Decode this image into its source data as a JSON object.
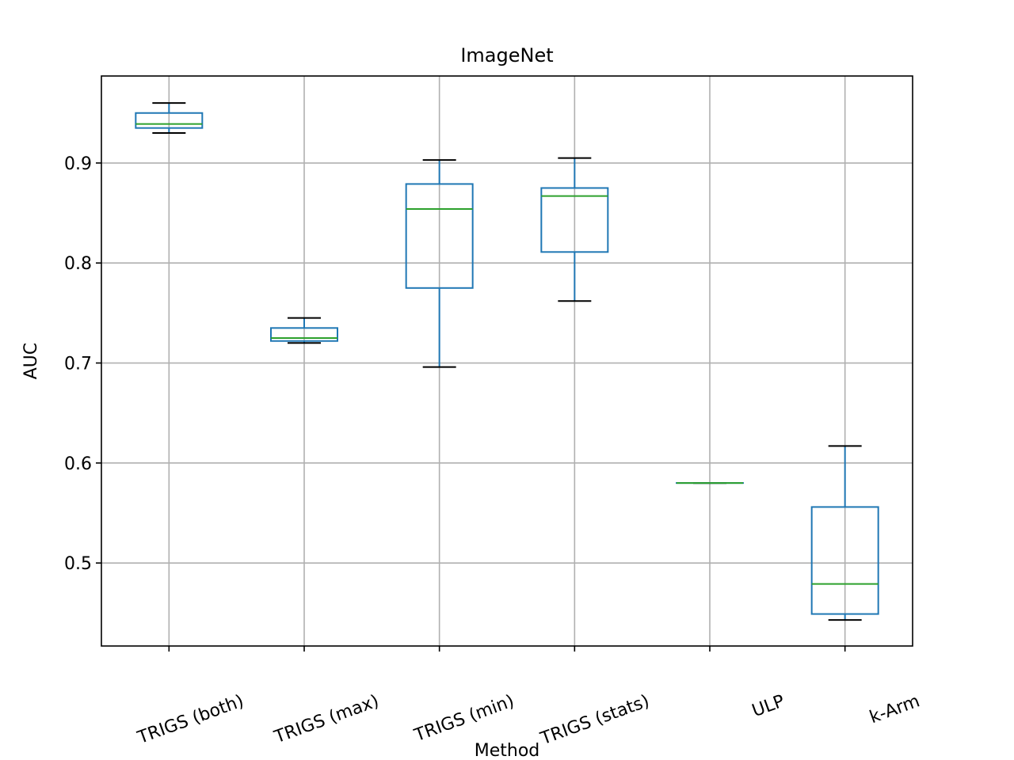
{
  "chart_data": {
    "type": "box",
    "title": "ImageNet",
    "xlabel": "Method",
    "ylabel": "AUC",
    "ylim": [
      0.417,
      0.987
    ],
    "yticks": [
      0.5,
      0.6,
      0.7,
      0.8,
      0.9
    ],
    "ytick_labels": [
      "0.5",
      "0.6",
      "0.7",
      "0.8",
      "0.9"
    ],
    "grid": true,
    "categories": [
      "TRIGS (both)",
      "TRIGS (max)",
      "TRIGS (min)",
      "TRIGS (stats)",
      "ULP",
      "k-Arm"
    ],
    "boxes": [
      {
        "min": 0.93,
        "q1": 0.935,
        "median": 0.939,
        "q3": 0.95,
        "max": 0.96
      },
      {
        "min": 0.72,
        "q1": 0.722,
        "median": 0.725,
        "q3": 0.735,
        "max": 0.745
      },
      {
        "min": 0.696,
        "q1": 0.775,
        "median": 0.854,
        "q3": 0.879,
        "max": 0.903
      },
      {
        "min": 0.762,
        "q1": 0.811,
        "median": 0.867,
        "q3": 0.875,
        "max": 0.905
      },
      {
        "min": 0.58,
        "q1": 0.58,
        "median": 0.58,
        "q3": 0.58,
        "max": 0.58
      },
      {
        "min": 0.443,
        "q1": 0.449,
        "median": 0.479,
        "q3": 0.556,
        "max": 0.617
      }
    ],
    "colors": {
      "box": "#1f77b4",
      "median": "#2ca02c",
      "cap": "#000000",
      "grid": "#b0b0b0",
      "axis": "#000000"
    }
  }
}
